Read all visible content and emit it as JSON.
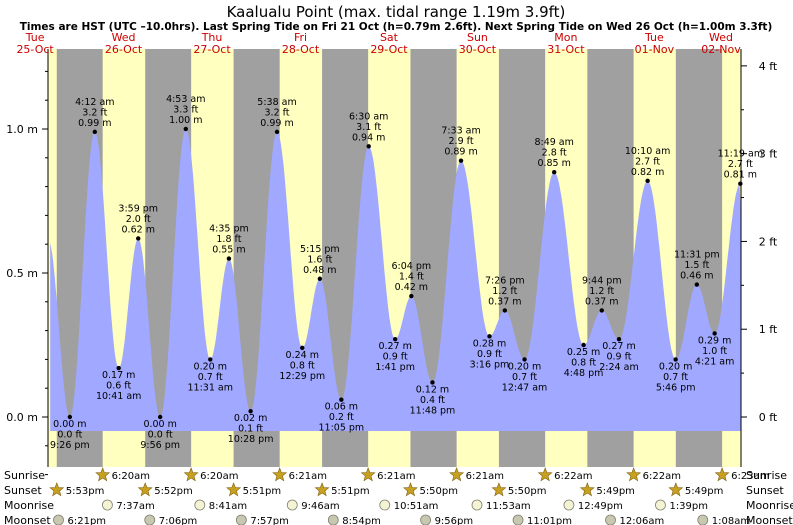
{
  "title": "Kaalualu Point (max. tidal range 1.19m 3.9ft)",
  "subtitle": "Times are HST (UTC –10.0hrs). Last Spring Tide on Fri 21 Oct (h=0.79m 2.6ft). Next Spring Tide on Wed 26 Oct (h=1.00m 3.3ft)",
  "colors": {
    "day": "#ffffc0",
    "night": "#a0a0a0",
    "water": "#a0a8ff",
    "day_label": "#cc0000",
    "sun": "#c8a020",
    "moon": "#e8e8c0"
  },
  "chart_data": {
    "type": "area",
    "time_unit": "hours from 25-Oct 00:00 HST",
    "xlim": [
      15.5,
      203.5
    ],
    "ylim_m": [
      -0.25,
      1.25
    ],
    "left_axis": {
      "unit": "m",
      "ticks": [
        0.0,
        0.5,
        1.0
      ],
      "labels": [
        "0.0 m",
        "0.5 m",
        "1.0 m"
      ]
    },
    "right_axis": {
      "unit": "ft",
      "ticks": [
        0,
        1,
        2,
        3,
        4
      ],
      "labels": [
        "0 ft",
        "1 ft",
        "2 ft",
        "3 ft",
        "4 ft"
      ]
    },
    "days": [
      {
        "dow": "Tue",
        "date": "25-Oct",
        "noon": 12
      },
      {
        "dow": "Wed",
        "date": "26-Oct",
        "noon": 36
      },
      {
        "dow": "Thu",
        "date": "27-Oct",
        "noon": 60
      },
      {
        "dow": "Fri",
        "date": "28-Oct",
        "noon": 84
      },
      {
        "dow": "Sat",
        "date": "29-Oct",
        "noon": 108
      },
      {
        "dow": "Sun",
        "date": "30-Oct",
        "noon": 132
      },
      {
        "dow": "Mon",
        "date": "31-Oct",
        "noon": 156
      },
      {
        "dow": "Tue",
        "date": "01-Nov",
        "noon": 180
      },
      {
        "dow": "Wed",
        "date": "02-Nov",
        "noon": 204
      }
    ],
    "nights": [
      [
        17.88,
        30.33
      ],
      [
        41.87,
        54.33
      ],
      [
        65.85,
        78.35
      ],
      [
        89.85,
        102.35
      ],
      [
        113.83,
        126.35
      ],
      [
        137.83,
        150.37
      ],
      [
        161.82,
        174.37
      ],
      [
        185.82,
        198.38
      ]
    ],
    "curve_start": [
      15.5,
      0.62
    ],
    "curve_end": [
      203.4,
      0.6
    ],
    "extrema": [
      {
        "t": 21.43,
        "m": 0.0,
        "kind": "low",
        "lines": [
          "0.00 m",
          "0.0 ft",
          "9:26 pm"
        ]
      },
      {
        "t": 28.2,
        "m": 0.99,
        "kind": "high",
        "lines": [
          "4:12 am",
          "3.2 ft",
          "0.99 m"
        ]
      },
      {
        "t": 34.68,
        "m": 0.17,
        "kind": "low",
        "lines": [
          "0.17 m",
          "0.6 ft",
          "10:41 am"
        ]
      },
      {
        "t": 39.98,
        "m": 0.62,
        "kind": "high",
        "lines": [
          "3:59 pm",
          "2.0 ft",
          "0.62 m"
        ]
      },
      {
        "t": 45.93,
        "m": 0.0,
        "kind": "low",
        "lines": [
          "0.00 m",
          "0.0 ft",
          "9:56 pm"
        ]
      },
      {
        "t": 52.88,
        "m": 1.0,
        "kind": "high",
        "lines": [
          "4:53 am",
          "3.3 ft",
          "1.00 m"
        ]
      },
      {
        "t": 59.52,
        "m": 0.2,
        "kind": "low",
        "lines": [
          "0.20 m",
          "0.7 ft",
          "11:31 am"
        ]
      },
      {
        "t": 64.58,
        "m": 0.55,
        "kind": "high",
        "lines": [
          "4:35 pm",
          "1.8 ft",
          "0.55 m"
        ]
      },
      {
        "t": 70.47,
        "m": 0.02,
        "kind": "low",
        "lines": [
          "0.02 m",
          "0.1 ft",
          "10:28 pm"
        ]
      },
      {
        "t": 77.63,
        "m": 0.99,
        "kind": "high",
        "lines": [
          "5:38 am",
          "3.2 ft",
          "0.99 m"
        ]
      },
      {
        "t": 84.48,
        "m": 0.24,
        "kind": "low",
        "lines": [
          "0.24 m",
          "0.8 ft",
          "12:29 pm"
        ]
      },
      {
        "t": 89.25,
        "m": 0.48,
        "kind": "high",
        "lines": [
          "5:15 pm",
          "1.6 ft",
          "0.48 m"
        ]
      },
      {
        "t": 95.08,
        "m": 0.06,
        "kind": "low",
        "lines": [
          "0.06 m",
          "0.2 ft",
          "11:05 pm"
        ]
      },
      {
        "t": 102.5,
        "m": 0.94,
        "kind": "high",
        "lines": [
          "6:30 am",
          "3.1 ft",
          "0.94 m"
        ]
      },
      {
        "t": 109.68,
        "m": 0.27,
        "kind": "low",
        "lines": [
          "0.27 m",
          "0.9 ft",
          "1:41 pm"
        ]
      },
      {
        "t": 114.07,
        "m": 0.42,
        "kind": "high",
        "lines": [
          "6:04 pm",
          "1.4 ft",
          "0.42 m"
        ]
      },
      {
        "t": 119.8,
        "m": 0.12,
        "kind": "low",
        "lines": [
          "0.12 m",
          "0.4 ft",
          "11:48 pm"
        ]
      },
      {
        "t": 127.55,
        "m": 0.89,
        "kind": "high",
        "lines": [
          "7:33 am",
          "2.9 ft",
          "0.89 m"
        ]
      },
      {
        "t": 135.27,
        "m": 0.28,
        "kind": "low",
        "lines": [
          "0.28 m",
          "0.9 ft",
          "3:16 pm"
        ]
      },
      {
        "t": 139.43,
        "m": 0.37,
        "kind": "high",
        "lines": [
          "7:26 pm",
          "1.2 ft",
          "0.37 m"
        ]
      },
      {
        "t": 144.78,
        "m": 0.2,
        "kind": "low",
        "lines": [
          "0.20 m",
          "0.7 ft",
          "12:47 am"
        ]
      },
      {
        "t": 152.82,
        "m": 0.85,
        "kind": "high",
        "lines": [
          "8:49 am",
          "2.8 ft",
          "0.85 m"
        ]
      },
      {
        "t": 160.8,
        "m": 0.25,
        "kind": "low",
        "lines": [
          "0.25 m",
          "0.8 ft",
          "4:48 pm"
        ]
      },
      {
        "t": 165.73,
        "m": 0.37,
        "kind": "high",
        "lines": [
          "9:44 pm",
          "1.2 ft",
          "0.37 m"
        ]
      },
      {
        "t": 170.4,
        "m": 0.27,
        "kind": "low",
        "lines": [
          "0.27 m",
          "0.9 ft",
          "2:24 am"
        ]
      },
      {
        "t": 178.17,
        "m": 0.82,
        "kind": "high",
        "lines": [
          "10:10 am",
          "2.7 ft",
          "0.82 m"
        ]
      },
      {
        "t": 185.77,
        "m": 0.2,
        "kind": "low",
        "lines": [
          "0.20 m",
          "0.7 ft",
          "5:46 pm"
        ]
      },
      {
        "t": 191.52,
        "m": 0.46,
        "kind": "high",
        "lines": [
          "11:31 pm",
          "1.5 ft",
          "0.46 m"
        ]
      },
      {
        "t": 196.35,
        "m": 0.29,
        "kind": "low",
        "lines": [
          "0.29 m",
          "1.0 ft",
          "4:21 am"
        ]
      },
      {
        "t": 203.32,
        "m": 0.81,
        "kind": "high",
        "lines": [
          "11:19 am",
          "2.7 ft",
          "0.81 m"
        ]
      }
    ],
    "rows": {
      "labels": [
        "Sunrise",
        "Sunset",
        "Moonrise",
        "Moonset"
      ],
      "sunrise": [
        {
          "t": 30.33,
          "label": "6:20am"
        },
        {
          "t": 54.33,
          "label": "6:20am"
        },
        {
          "t": 78.35,
          "label": "6:21am"
        },
        {
          "t": 102.35,
          "label": "6:21am"
        },
        {
          "t": 126.35,
          "label": "6:21am"
        },
        {
          "t": 150.37,
          "label": "6:22am"
        },
        {
          "t": 174.37,
          "label": "6:22am"
        },
        {
          "t": 198.38,
          "label": "6:23am"
        }
      ],
      "sunset": [
        {
          "t": 17.88,
          "label": "5:53pm"
        },
        {
          "t": 41.87,
          "label": "5:52pm"
        },
        {
          "t": 65.85,
          "label": "5:51pm"
        },
        {
          "t": 89.85,
          "label": "5:51pm"
        },
        {
          "t": 113.83,
          "label": "5:50pm"
        },
        {
          "t": 137.83,
          "label": "5:50pm"
        },
        {
          "t": 161.82,
          "label": "5:49pm"
        },
        {
          "t": 185.82,
          "label": "5:49pm"
        }
      ],
      "moonrise": [
        {
          "t": 31.62,
          "label": "7:37am"
        },
        {
          "t": 56.68,
          "label": "8:41am"
        },
        {
          "t": 81.77,
          "label": "9:46am"
        },
        {
          "t": 106.85,
          "label": "10:51am"
        },
        {
          "t": 131.88,
          "label": "11:53am"
        },
        {
          "t": 156.82,
          "label": "12:49pm"
        },
        {
          "t": 181.65,
          "label": "1:39pm"
        }
      ],
      "moonset": [
        {
          "t": 18.35,
          "label": "6:21pm"
        },
        {
          "t": 43.1,
          "label": "7:06pm"
        },
        {
          "t": 67.95,
          "label": "7:57pm"
        },
        {
          "t": 92.9,
          "label": "8:54pm"
        },
        {
          "t": 117.93,
          "label": "9:56pm"
        },
        {
          "t": 143.02,
          "label": "11:01pm"
        },
        {
          "t": 168.1,
          "label": "12:06am"
        },
        {
          "t": 193.13,
          "label": "1:08am"
        }
      ]
    }
  }
}
